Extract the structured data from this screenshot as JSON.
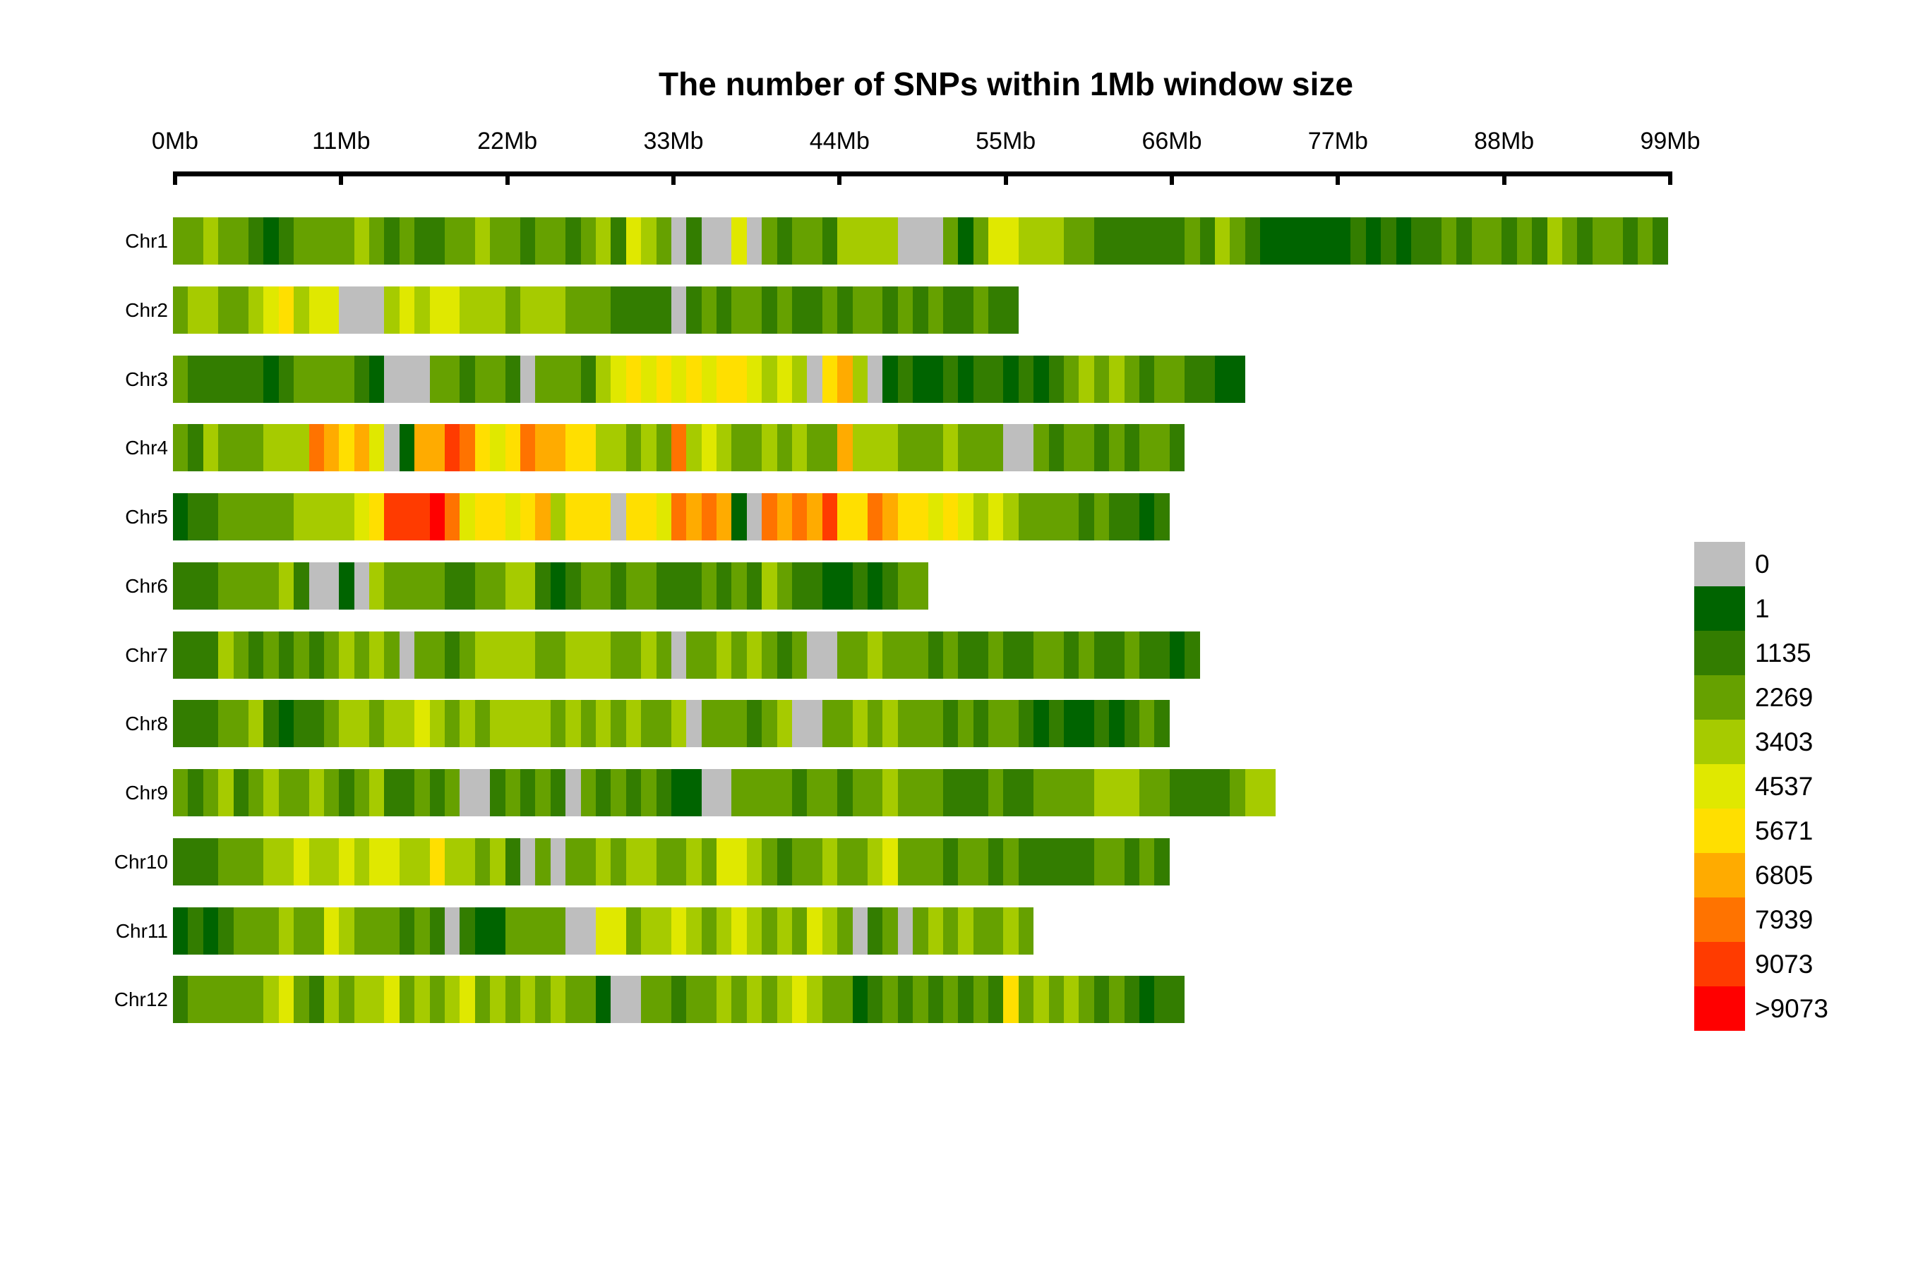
{
  "title": "The number of SNPs within 1Mb window size",
  "axis": {
    "tick_labels": [
      "0Mb",
      "11Mb",
      "22Mb",
      "33Mb",
      "44Mb",
      "55Mb",
      "66Mb",
      "77Mb",
      "88Mb",
      "99Mb"
    ],
    "tick_mb": [
      0,
      11,
      22,
      33,
      44,
      55,
      66,
      77,
      88,
      99
    ]
  },
  "legend": {
    "entries": [
      {
        "label": "0",
        "color": "#BEBEBE"
      },
      {
        "label": "1",
        "color": "#006400"
      },
      {
        "label": "1135",
        "color": "#337D00"
      },
      {
        "label": "2269",
        "color": "#66A100"
      },
      {
        "label": "3403",
        "color": "#A6CB00"
      },
      {
        "label": "4537",
        "color": "#E0E800"
      },
      {
        "label": "5671",
        "color": "#FFDF00"
      },
      {
        "label": "6805",
        "color": "#FFAB00"
      },
      {
        "label": "7939",
        "color": "#FF7300"
      },
      {
        "label": "9073",
        "color": "#FF3B00"
      },
      {
        "label": ">9073",
        "color": "#FF0000"
      }
    ]
  },
  "chart_data": {
    "type": "heatmap",
    "title": "The number of SNPs within 1Mb window size",
    "window_size": "1Mb",
    "x_axis_mb": [
      0,
      11,
      22,
      33,
      44,
      55,
      66,
      77,
      88,
      99
    ],
    "xlim_mb": [
      0,
      99
    ],
    "legend_position": "right",
    "legend_breaks": [
      "0",
      "1",
      "1135",
      "2269",
      "3403",
      "4537",
      "5671",
      "6805",
      "7939",
      "9073",
      ">9073"
    ],
    "palette": [
      "#BEBEBE",
      "#006400",
      "#337D00",
      "#66A100",
      "#A6CB00",
      "#E0E800",
      "#FFDF00",
      "#FFAB00",
      "#FF7300",
      "#FF3B00",
      "#FF0000"
    ],
    "note": "window_levels are per-1Mb-window SNP-density bins; value is an index into palette/legend_breaks",
    "chromosomes": [
      {
        "name": "Chr1",
        "length_mb": 99,
        "window_levels": [
          3,
          3,
          4,
          3,
          3,
          2,
          1,
          2,
          3,
          3,
          3,
          3,
          4,
          3,
          2,
          3,
          2,
          2,
          3,
          3,
          4,
          3,
          3,
          2,
          3,
          3,
          2,
          3,
          4,
          2,
          5,
          4,
          3,
          0,
          2,
          0,
          0,
          5,
          0,
          3,
          2,
          3,
          3,
          2,
          4,
          4,
          4,
          4,
          0,
          0,
          0,
          3,
          1,
          3,
          5,
          5,
          4,
          4,
          4,
          3,
          3,
          2,
          2,
          2,
          2,
          2,
          2,
          3,
          2,
          4,
          3,
          2,
          1,
          1,
          1,
          1,
          1,
          1,
          2,
          1,
          2,
          1,
          2,
          2,
          3,
          2,
          3,
          3,
          2,
          3,
          2,
          4,
          3,
          2,
          3,
          3,
          2,
          3,
          2
        ]
      },
      {
        "name": "Chr2",
        "length_mb": 56,
        "window_levels": [
          3,
          4,
          4,
          3,
          3,
          4,
          5,
          6,
          4,
          5,
          5,
          0,
          0,
          0,
          4,
          5,
          4,
          5,
          5,
          4,
          4,
          4,
          3,
          4,
          4,
          4,
          3,
          3,
          3,
          2,
          2,
          2,
          2,
          0,
          2,
          3,
          2,
          3,
          3,
          2,
          3,
          2,
          2,
          3,
          2,
          3,
          3,
          2,
          3,
          2,
          3,
          2,
          2,
          3,
          2,
          2
        ]
      },
      {
        "name": "Chr3",
        "length_mb": 71,
        "window_levels": [
          3,
          2,
          2,
          2,
          2,
          2,
          1,
          2,
          3,
          3,
          3,
          3,
          2,
          1,
          0,
          0,
          0,
          3,
          3,
          2,
          3,
          3,
          2,
          0,
          3,
          3,
          3,
          2,
          4,
          5,
          6,
          5,
          6,
          5,
          6,
          5,
          6,
          6,
          5,
          4,
          5,
          4,
          0,
          6,
          7,
          4,
          0,
          1,
          2,
          1,
          1,
          2,
          1,
          2,
          2,
          1,
          2,
          1,
          2,
          3,
          4,
          3,
          4,
          3,
          2,
          3,
          3,
          2,
          2,
          1,
          1
        ]
      },
      {
        "name": "Chr4",
        "length_mb": 67,
        "window_levels": [
          3,
          2,
          4,
          3,
          3,
          3,
          4,
          4,
          4,
          8,
          7,
          6,
          7,
          5,
          0,
          1,
          7,
          7,
          9,
          8,
          6,
          5,
          6,
          8,
          7,
          7,
          6,
          6,
          4,
          4,
          3,
          4,
          3,
          8,
          4,
          5,
          4,
          3,
          3,
          4,
          3,
          4,
          3,
          3,
          7,
          4,
          4,
          4,
          3,
          3,
          3,
          4,
          3,
          3,
          3,
          0,
          0,
          3,
          2,
          3,
          3,
          2,
          3,
          2,
          3,
          3,
          2
        ]
      },
      {
        "name": "Chr5",
        "length_mb": 66,
        "window_levels": [
          1,
          2,
          2,
          3,
          3,
          3,
          3,
          3,
          4,
          4,
          4,
          4,
          5,
          6,
          9,
          9,
          9,
          10,
          8,
          5,
          6,
          6,
          5,
          6,
          7,
          4,
          6,
          6,
          6,
          0,
          6,
          6,
          5,
          8,
          7,
          8,
          7,
          1,
          0,
          8,
          7,
          8,
          7,
          9,
          6,
          6,
          8,
          7,
          6,
          6,
          5,
          6,
          5,
          4,
          5,
          4,
          3,
          3,
          3,
          3,
          2,
          3,
          2,
          2,
          1,
          2
        ]
      },
      {
        "name": "Chr6",
        "length_mb": 50,
        "window_levels": [
          2,
          2,
          2,
          3,
          3,
          3,
          3,
          4,
          2,
          0,
          0,
          1,
          0,
          4,
          3,
          3,
          3,
          3,
          2,
          2,
          3,
          3,
          4,
          4,
          2,
          1,
          2,
          3,
          3,
          2,
          3,
          3,
          2,
          2,
          2,
          3,
          2,
          3,
          2,
          4,
          3,
          2,
          2,
          1,
          1,
          2,
          1,
          2,
          3,
          3
        ]
      },
      {
        "name": "Chr7",
        "length_mb": 68,
        "window_levels": [
          2,
          2,
          2,
          4,
          3,
          2,
          3,
          2,
          3,
          2,
          3,
          4,
          3,
          4,
          3,
          0,
          3,
          3,
          2,
          3,
          4,
          4,
          4,
          4,
          3,
          3,
          4,
          4,
          4,
          3,
          3,
          4,
          3,
          0,
          3,
          3,
          4,
          3,
          4,
          3,
          2,
          3,
          0,
          0,
          3,
          3,
          4,
          3,
          3,
          3,
          2,
          3,
          2,
          2,
          3,
          2,
          2,
          3,
          3,
          2,
          3,
          2,
          2,
          3,
          2,
          2,
          1,
          2
        ]
      },
      {
        "name": "Chr8",
        "length_mb": 66,
        "window_levels": [
          2,
          2,
          2,
          3,
          3,
          4,
          2,
          1,
          2,
          2,
          3,
          4,
          4,
          3,
          4,
          4,
          5,
          4,
          3,
          4,
          3,
          4,
          4,
          4,
          4,
          3,
          4,
          3,
          4,
          3,
          4,
          3,
          3,
          4,
          0,
          3,
          3,
          3,
          2,
          3,
          4,
          0,
          0,
          3,
          3,
          4,
          3,
          4,
          3,
          3,
          3,
          2,
          3,
          2,
          3,
          3,
          2,
          1,
          2,
          1,
          1,
          2,
          1,
          2,
          3,
          2
        ]
      },
      {
        "name": "Chr9",
        "length_mb": 73,
        "window_levels": [
          3,
          2,
          3,
          4,
          2,
          3,
          4,
          3,
          3,
          4,
          3,
          2,
          3,
          4,
          2,
          2,
          3,
          2,
          3,
          0,
          0,
          2,
          3,
          2,
          3,
          2,
          0,
          3,
          2,
          3,
          2,
          3,
          2,
          1,
          1,
          0,
          0,
          3,
          3,
          3,
          3,
          2,
          3,
          3,
          2,
          3,
          3,
          4,
          3,
          3,
          3,
          2,
          2,
          2,
          3,
          2,
          2,
          3,
          3,
          3,
          3,
          4,
          4,
          4,
          3,
          3,
          2,
          2,
          2,
          2,
          3,
          4,
          4
        ]
      },
      {
        "name": "Chr10",
        "length_mb": 66,
        "window_levels": [
          2,
          2,
          2,
          3,
          3,
          3,
          4,
          4,
          5,
          4,
          4,
          5,
          4,
          5,
          5,
          4,
          4,
          6,
          4,
          4,
          3,
          4,
          2,
          0,
          3,
          0,
          3,
          3,
          4,
          3,
          4,
          4,
          3,
          3,
          4,
          3,
          5,
          5,
          4,
          3,
          2,
          3,
          3,
          4,
          3,
          3,
          4,
          5,
          3,
          3,
          3,
          2,
          3,
          3,
          2,
          3,
          2,
          2,
          2,
          2,
          2,
          3,
          3,
          2,
          3,
          2
        ]
      },
      {
        "name": "Chr11",
        "length_mb": 57,
        "window_levels": [
          1,
          2,
          1,
          2,
          3,
          3,
          3,
          4,
          3,
          3,
          5,
          4,
          3,
          3,
          3,
          2,
          3,
          2,
          0,
          2,
          1,
          1,
          3,
          3,
          3,
          3,
          0,
          0,
          5,
          5,
          3,
          4,
          4,
          5,
          4,
          3,
          4,
          5,
          4,
          3,
          4,
          3,
          5,
          4,
          3,
          0,
          2,
          3,
          0,
          3,
          4,
          3,
          4,
          3,
          3,
          4,
          3
        ]
      },
      {
        "name": "Chr12",
        "length_mb": 67,
        "window_levels": [
          2,
          3,
          3,
          3,
          3,
          3,
          4,
          5,
          3,
          2,
          4,
          3,
          4,
          4,
          5,
          3,
          4,
          3,
          4,
          5,
          3,
          4,
          3,
          4,
          3,
          4,
          3,
          3,
          1,
          0,
          0,
          3,
          3,
          2,
          3,
          3,
          4,
          3,
          4,
          3,
          4,
          5,
          4,
          3,
          3,
          1,
          2,
          3,
          2,
          3,
          2,
          3,
          2,
          3,
          2,
          6,
          3,
          4,
          3,
          4,
          3,
          2,
          3,
          2,
          1,
          2,
          2
        ]
      }
    ]
  }
}
